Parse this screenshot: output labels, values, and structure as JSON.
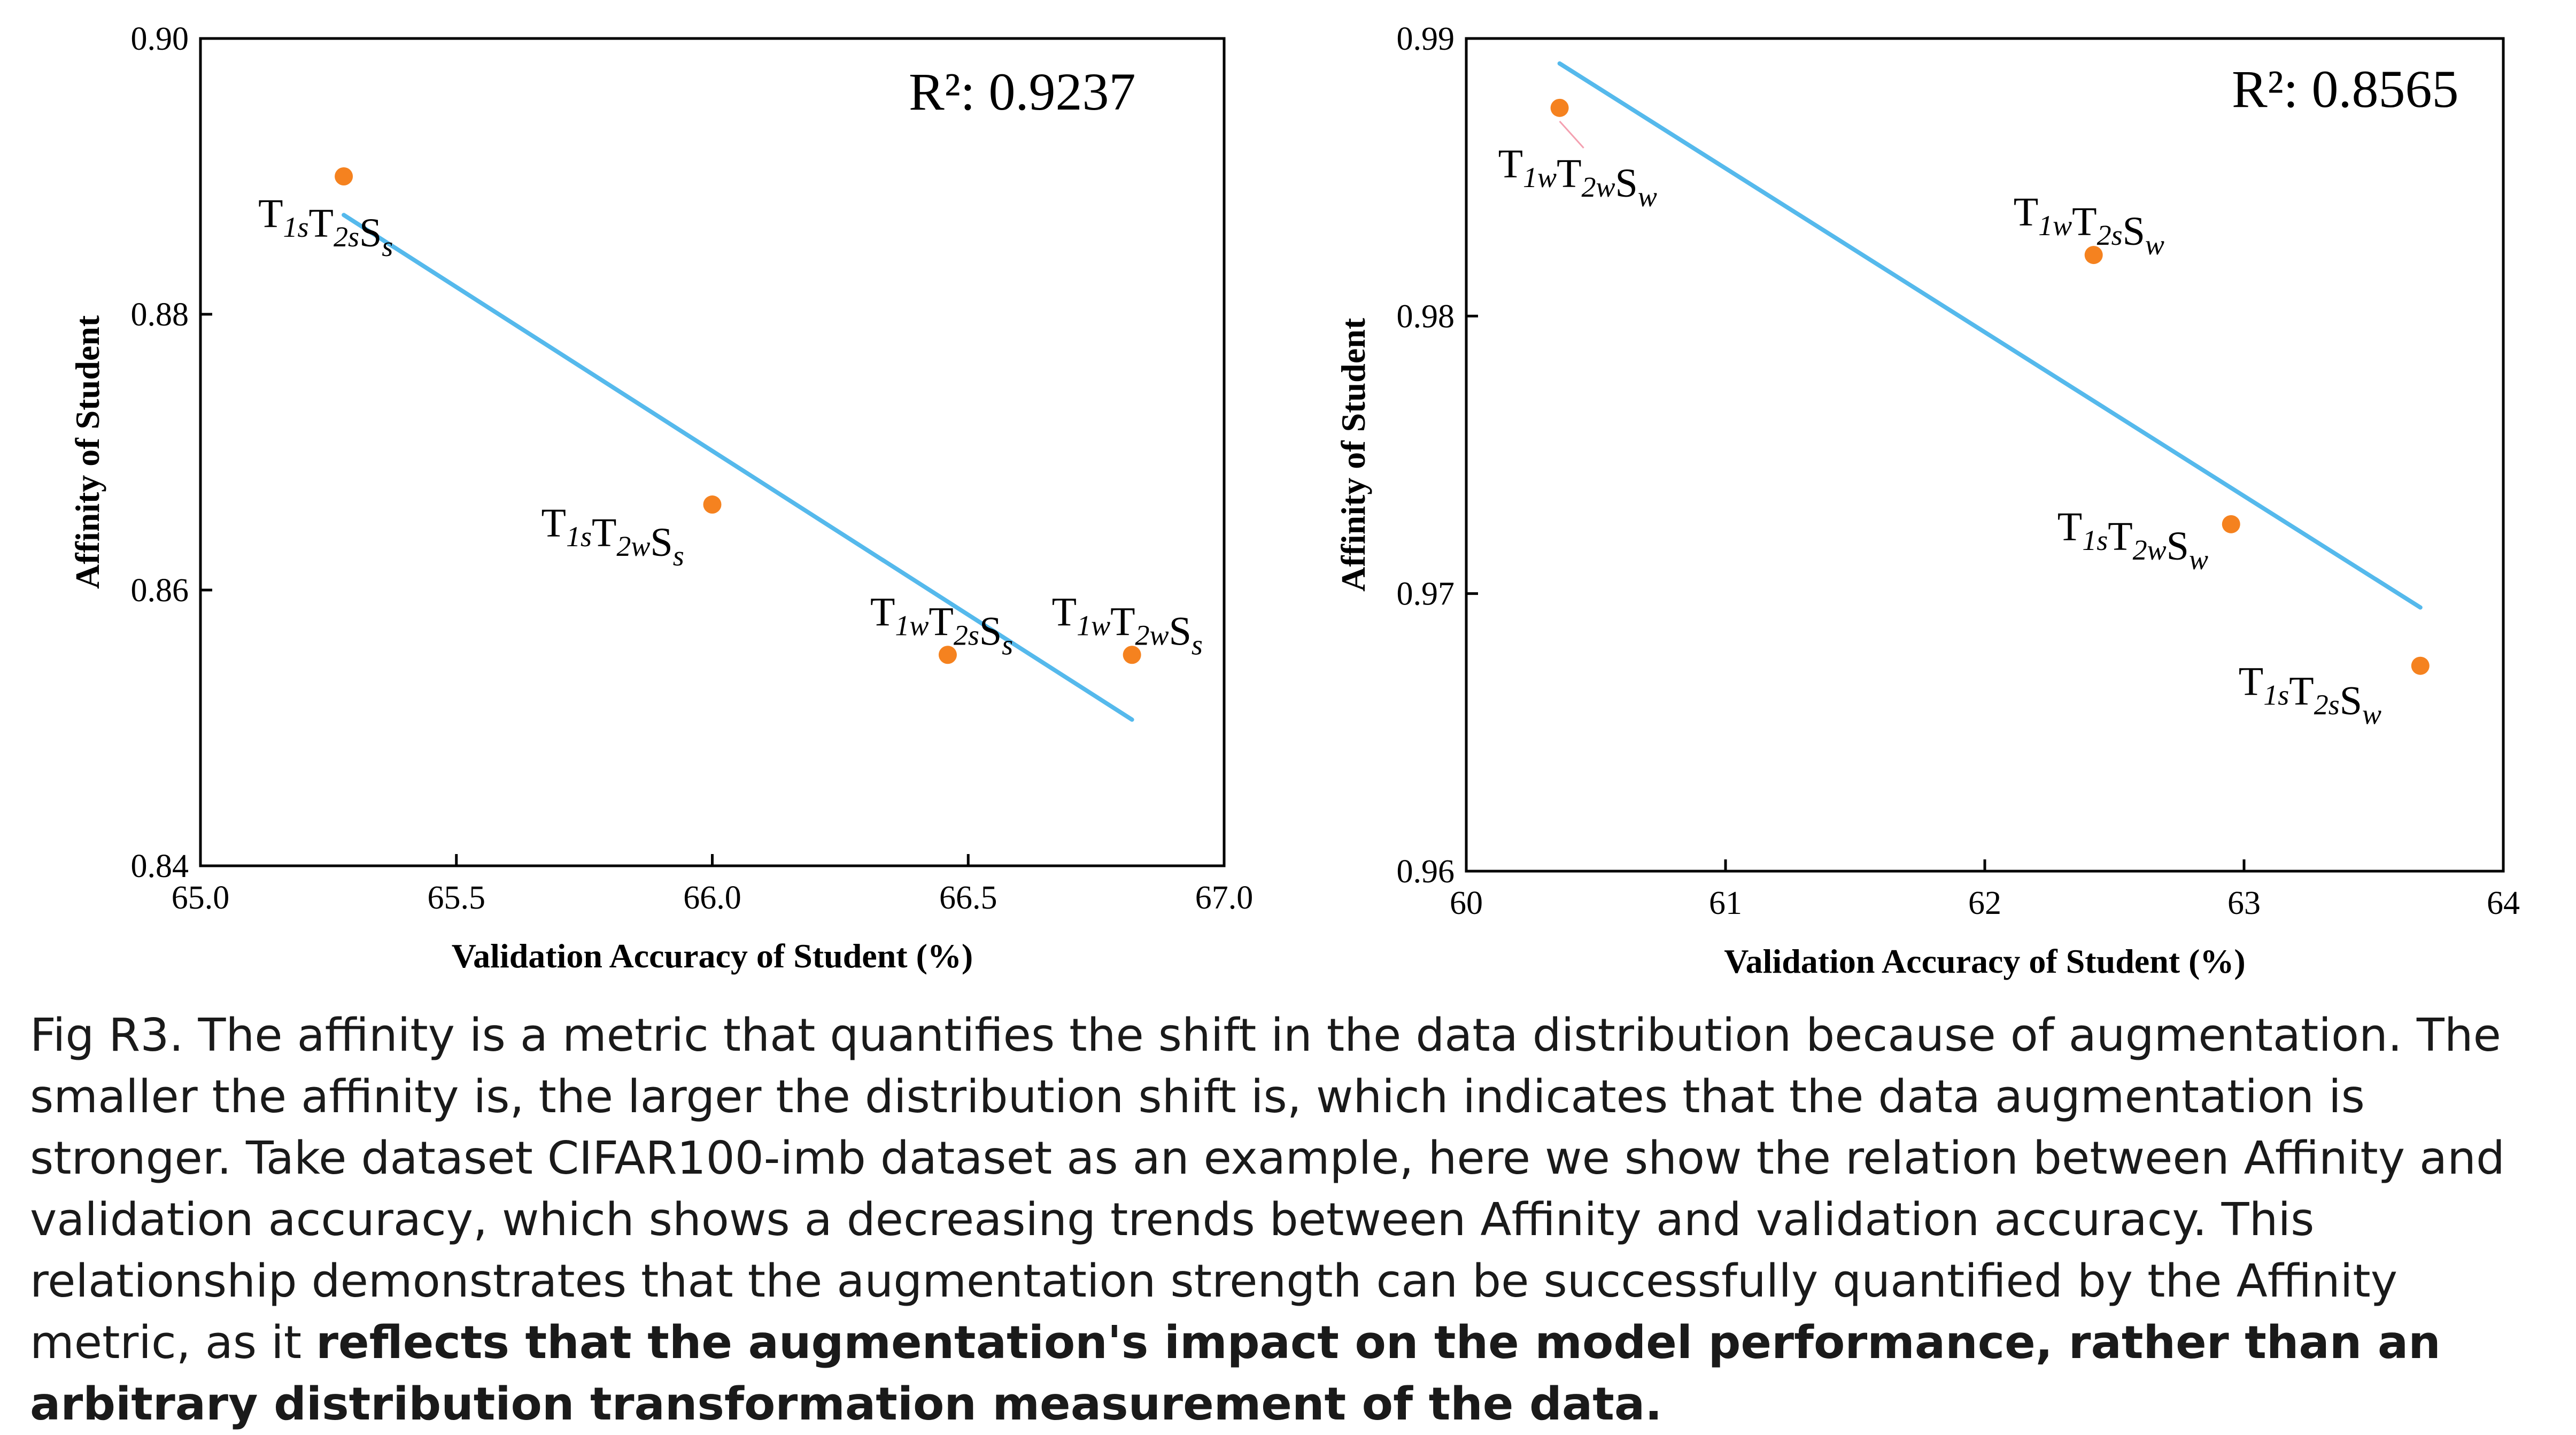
{
  "chart_data": [
    {
      "type": "scatter",
      "xlabel": "Validation Accuracy of Student (%)",
      "ylabel": "Affinity of Student",
      "xlim": [
        65.0,
        67.0
      ],
      "ylim": [
        0.84,
        0.9
      ],
      "xticks": [
        "65.0",
        "65.5",
        "66.0",
        "66.5",
        "67.0"
      ],
      "yticks": [
        "0.84",
        "0.86",
        "0.88",
        "0.90"
      ],
      "annotation": "R²: 0.9237",
      "points": [
        {
          "x": 65.28,
          "y": 0.89,
          "label": [
            "T",
            "1s",
            "T",
            "2s",
            "S",
            "s"
          ]
        },
        {
          "x": 66.0,
          "y": 0.8662,
          "label": [
            "T",
            "1s",
            "T",
            "2w",
            "S",
            "s"
          ]
        },
        {
          "x": 66.46,
          "y": 0.8553,
          "label": [
            "T",
            "1w",
            "T",
            "2s",
            "S",
            "s"
          ]
        },
        {
          "x": 66.82,
          "y": 0.8553,
          "label": [
            "T",
            "1w",
            "T",
            "2w",
            "S",
            "s"
          ]
        }
      ],
      "fit_line": {
        "x": [
          65.28,
          66.82
        ],
        "y": [
          0.8872,
          0.8506
        ]
      },
      "point_color": "#f5821f",
      "line_color": "#55b9ec"
    },
    {
      "type": "scatter",
      "xlabel": "Validation Accuracy of Student (%)",
      "ylabel": "Affinity of Student",
      "xlim": [
        60,
        64
      ],
      "ylim": [
        0.96,
        0.99
      ],
      "xticks": [
        "60",
        "61",
        "62",
        "63",
        "64"
      ],
      "yticks": [
        "0.96",
        "0.97",
        "0.98",
        "0.99"
      ],
      "annotation": "R²: 0.8565",
      "points": [
        {
          "x": 60.36,
          "y": 0.9875,
          "label": [
            "T",
            "1w",
            "T",
            "2w",
            "S",
            "w"
          ]
        },
        {
          "x": 62.42,
          "y": 0.9822,
          "label": [
            "T",
            "1w",
            "T",
            "2s",
            "S",
            "w"
          ]
        },
        {
          "x": 62.95,
          "y": 0.9725,
          "label": [
            "T",
            "1s",
            "T",
            "2w",
            "S",
            "w"
          ]
        },
        {
          "x": 63.68,
          "y": 0.9674,
          "label": [
            "T",
            "1s",
            "T",
            "2s",
            "S",
            "w"
          ]
        }
      ],
      "fit_line": {
        "x": [
          60.36,
          63.68
        ],
        "y": [
          0.9891,
          0.9695
        ]
      },
      "point_color": "#f5821f",
      "line_color": "#55b9ec"
    }
  ],
  "caption": {
    "normal": "Fig R3. The affinity is a metric that quantifies the shift in the data distribution because of augmentation. The smaller the affinity is, the larger the distribution shift is, which indicates that the data augmentation is stronger. Take dataset CIFAR100-imb dataset as an example, here we show the relation between Affinity and validation accuracy, which shows a decreasing trends between Affinity and validation accuracy. This relationship demonstrates that the augmentation strength can be successfully quantified by the Affinity metric, as it ",
    "bold": "reflects that the augmentation's impact on the model performance, rather than an arbitrary distribution transformation measurement of the data."
  }
}
